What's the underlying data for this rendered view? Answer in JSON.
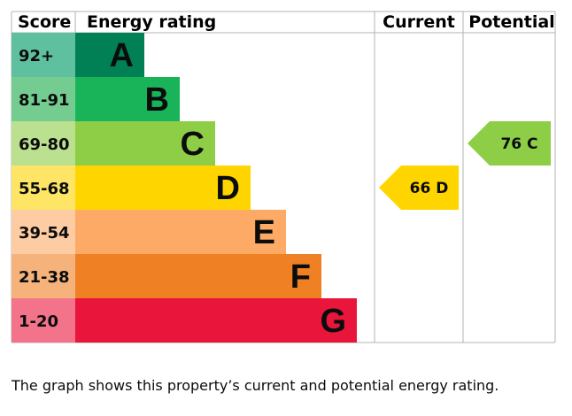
{
  "chart_data": {
    "type": "bar",
    "headers": {
      "score": "Score",
      "rating": "Energy rating",
      "current": "Current",
      "potential": "Potential"
    },
    "bands": [
      {
        "letter": "A",
        "range": "92+",
        "range_min": 92,
        "range_max": 100,
        "bar_color": "#008054",
        "score_color": "#5fc0a0"
      },
      {
        "letter": "B",
        "range": "81-91",
        "range_min": 81,
        "range_max": 91,
        "bar_color": "#19b459",
        "score_color": "#75cc91"
      },
      {
        "letter": "C",
        "range": "69-80",
        "range_min": 69,
        "range_max": 80,
        "bar_color": "#8dce46",
        "score_color": "#bbe190"
      },
      {
        "letter": "D",
        "range": "55-68",
        "range_min": 55,
        "range_max": 68,
        "bar_color": "#ffd500",
        "score_color": "#ffe566"
      },
      {
        "letter": "E",
        "range": "39-54",
        "range_min": 39,
        "range_max": 54,
        "bar_color": "#fcaa65",
        "score_color": "#fdcca3"
      },
      {
        "letter": "F",
        "range": "21-38",
        "range_min": 21,
        "range_max": 38,
        "bar_color": "#ef8023",
        "score_color": "#f5b37b"
      },
      {
        "letter": "G",
        "range": "1-20",
        "range_min": 1,
        "range_max": 20,
        "bar_color": "#e9153b",
        "score_color": "#f2738a"
      }
    ],
    "current": {
      "value": 66,
      "letter": "D",
      "label": "66  D",
      "color": "#ffd500"
    },
    "potential": {
      "value": 76,
      "letter": "C",
      "label": "76  C",
      "color": "#8dce46"
    }
  },
  "caption": "The graph shows this property’s current and potential energy rating."
}
